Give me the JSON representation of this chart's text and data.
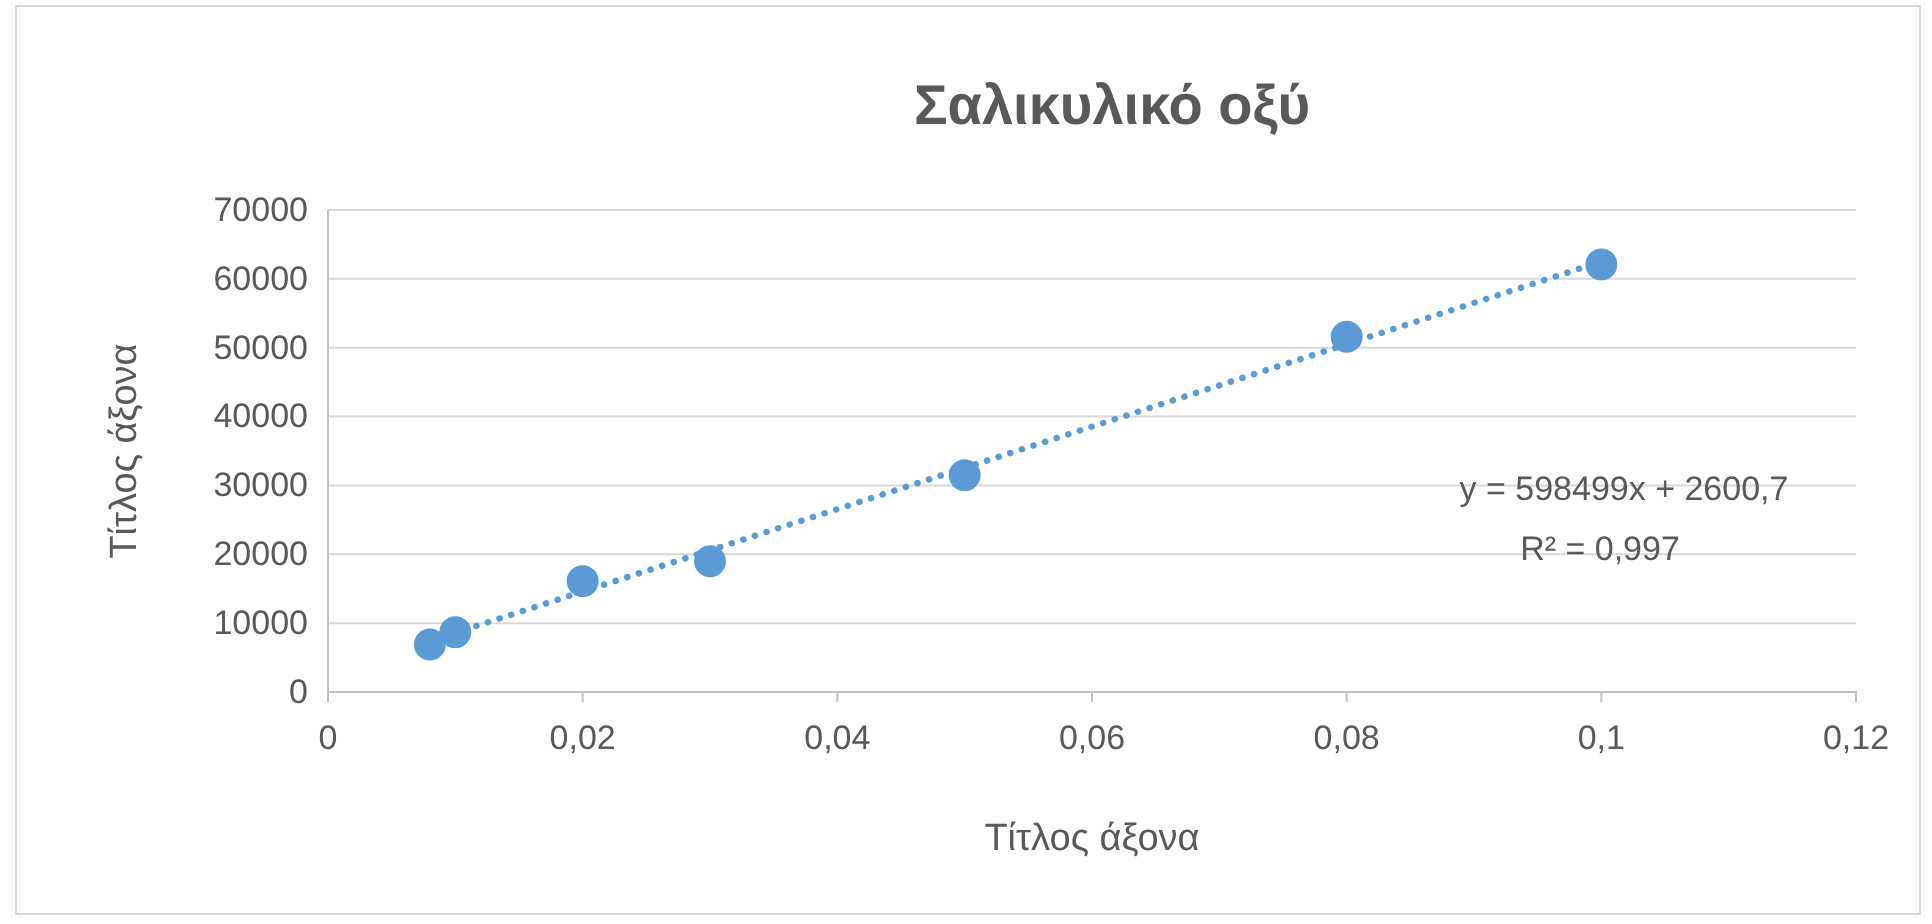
{
  "chart_data": {
    "type": "scatter",
    "title": "Σαλικυλικό οξύ",
    "xlabel": "Τίτλος άξονα",
    "ylabel": "Τίτλος άξονα",
    "x": [
      0.008,
      0.01,
      0.02,
      0.03,
      0.05,
      0.08,
      0.1
    ],
    "series": [
      {
        "type": "scatter",
        "color": "#5b9bd5",
        "marker": "circle",
        "values": [
          6900,
          8700,
          16100,
          19000,
          31500,
          51600,
          62100
        ]
      },
      {
        "type": "line",
        "color": "#5b9bd5",
        "line_style": "dotted",
        "marker": "none",
        "x": [
          0.008,
          0.1
        ],
        "values": [
          7400,
          62500
        ]
      }
    ],
    "annotations": [
      "y = 598499x + 2600,7",
      "R² = 0,997"
    ],
    "xlim": [
      0,
      0.12
    ],
    "xticks": [
      0,
      {
        "value": 0.02,
        "label": "0,02"
      },
      {
        "value": 0.04,
        "label": "0,04"
      },
      {
        "value": 0.06,
        "label": "0,06"
      },
      {
        "value": 0.08,
        "label": "0,08"
      },
      {
        "value": 0.1,
        "label": "0,1"
      },
      {
        "value": 0.12,
        "label": "0,12"
      }
    ],
    "ylim": [
      0,
      70000
    ],
    "yticks": [
      0,
      10000,
      20000,
      30000,
      40000,
      50000,
      60000,
      70000
    ],
    "grid": "y"
  }
}
